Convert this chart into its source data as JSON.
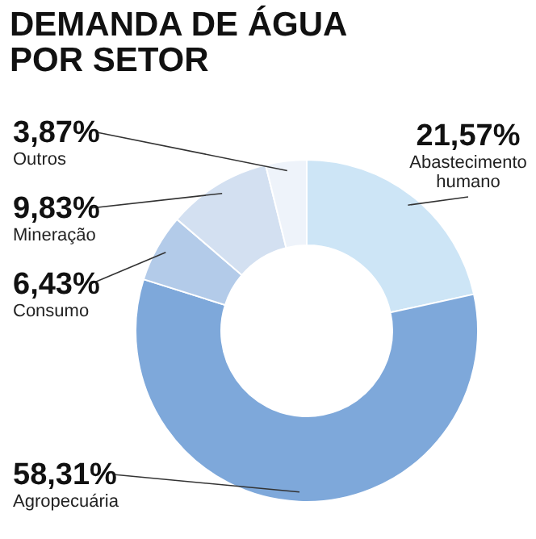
{
  "chart_data": {
    "type": "donut",
    "title": "DEMANDA DE ÁGUA POR SETOR",
    "categories": [
      "Abastecimento humano",
      "Agropecuária",
      "Consumo",
      "Mineração",
      "Outros"
    ],
    "values": [
      21.57,
      58.31,
      6.43,
      9.83,
      3.87
    ],
    "value_labels": [
      "21,57%",
      "58,31%",
      "6,43%",
      "9,83%",
      "3,87%"
    ],
    "colors": [
      "#cde5f6",
      "#7ea8da",
      "#b3cbe9",
      "#d3e0f1",
      "#eef3fa"
    ]
  }
}
